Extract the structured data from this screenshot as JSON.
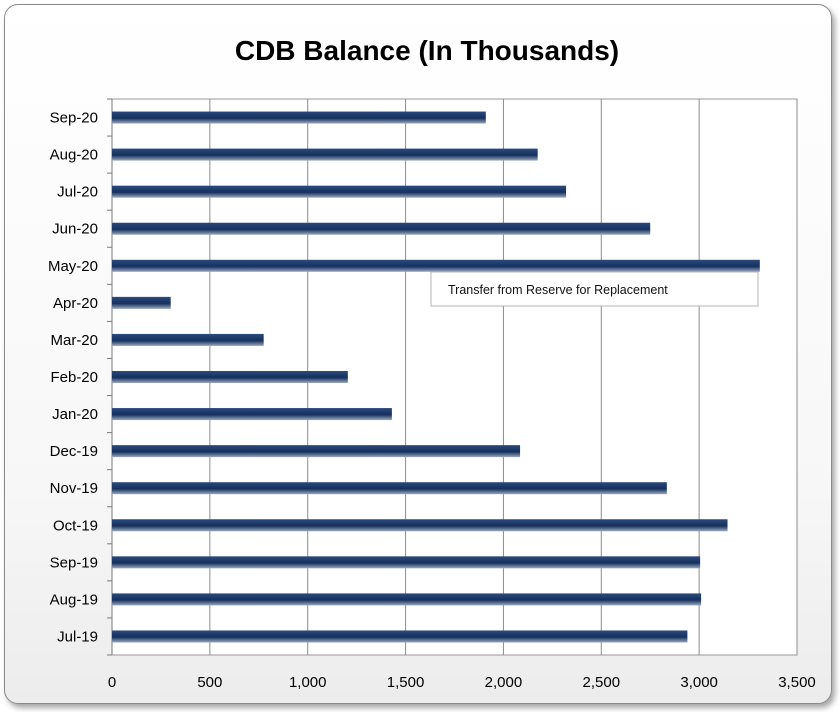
{
  "chart_data": {
    "type": "bar",
    "orientation": "horizontal",
    "title": "CDB Balance (In Thousands)",
    "xlabel": "",
    "ylabel": "",
    "categories": [
      "Jul-19",
      "Aug-19",
      "Sep-19",
      "Oct-19",
      "Nov-19",
      "Dec-19",
      "Jan-20",
      "Feb-20",
      "Mar-20",
      "Apr-20",
      "May-20",
      "Jun-20",
      "Jul-20",
      "Aug-20",
      "Sep-20"
    ],
    "values": [
      2940,
      3010,
      3005,
      3145,
      2835,
      2085,
      1430,
      1205,
      775,
      300,
      3310,
      2750,
      2320,
      2175,
      1910
    ],
    "xlim": [
      0,
      3500
    ],
    "x_ticks": [
      0,
      500,
      1000,
      1500,
      2000,
      2500,
      3000,
      3500
    ],
    "x_tick_labels": [
      "0",
      "500",
      "1,000",
      "1,500",
      "2,000",
      "2,500",
      "3,000",
      "3,500"
    ],
    "grid": "vertical",
    "bar_color": "#1f3a68",
    "annotation": {
      "text": "Transfer from Reserve for Replacement",
      "target_category": "Apr-20"
    }
  }
}
